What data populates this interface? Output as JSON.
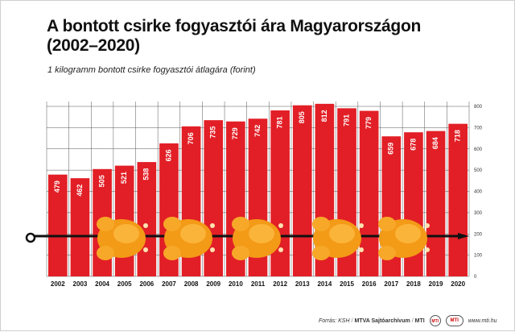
{
  "chart_data": {
    "type": "bar",
    "title_line1": "A bontott csirke fogyasztói ára Magyarországon",
    "title_line2": "(2002–2020)",
    "subtitle": "1 kilogramm bontott csirke fogyasztói átlagára (forint)",
    "categories": [
      "2002",
      "2003",
      "2004",
      "2005",
      "2006",
      "2007",
      "2008",
      "2009",
      "2010",
      "2011",
      "2012",
      "2013",
      "2014",
      "2015",
      "2016",
      "2017",
      "2018",
      "2019",
      "2020"
    ],
    "values": [
      479,
      462,
      505,
      521,
      538,
      626,
      706,
      735,
      729,
      742,
      781,
      805,
      812,
      791,
      779,
      659,
      678,
      684,
      718
    ],
    "ylim": [
      0,
      800
    ],
    "yticks": [
      "0",
      "100",
      "200",
      "300",
      "400",
      "500",
      "600",
      "700",
      "800"
    ],
    "grid": true,
    "bar_color": "#e21f26",
    "label_color": "#ffffff"
  },
  "footer": {
    "source": "Forrás: KSH",
    "separator": "/",
    "archive": "MTVA Sajtóarchívum",
    "agency": "MTI",
    "logo1_text": "MTI",
    "logo2_text": "MTI",
    "website": "www.mti.hu"
  }
}
